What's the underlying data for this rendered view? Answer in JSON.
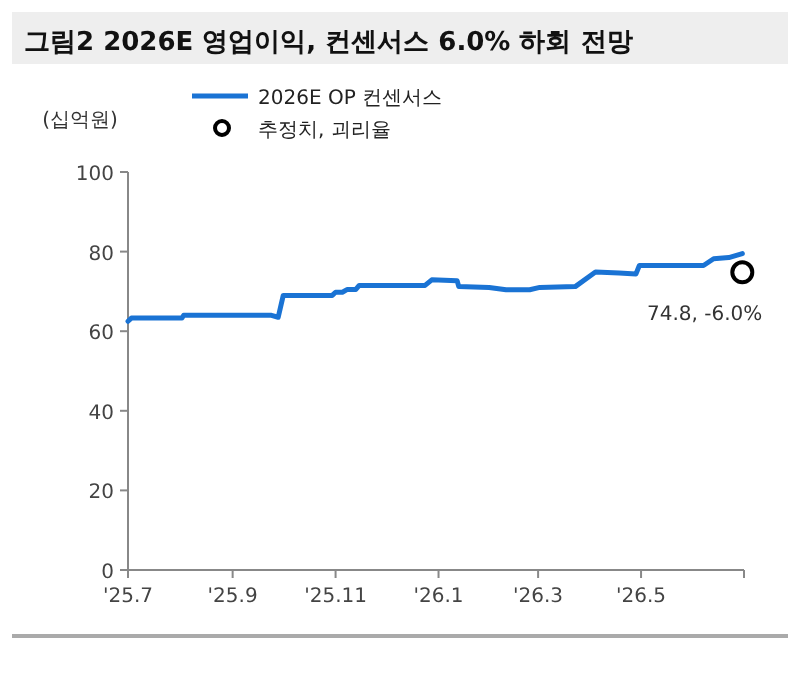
{
  "chart_data": {
    "type": "line",
    "title": "그림2 2026E 영업이익, 컨센서스 6.0% 하회 전망",
    "ylabel": "(십억원)",
    "xlim": [
      "2025-07-01",
      "2026-07-01"
    ],
    "xticks": [
      {
        "value": "2025-07-01",
        "label": "'25.7"
      },
      {
        "value": "2025-09-01",
        "label": "'25.9"
      },
      {
        "value": "2025-11-01",
        "label": "'25.11"
      },
      {
        "value": "2026-01-01",
        "label": "'26.1"
      },
      {
        "value": "2026-03-01",
        "label": "'26.3"
      },
      {
        "value": "2026-05-01",
        "label": "'26.5"
      },
      {
        "value": "2026-07-01",
        "label": null
      }
    ],
    "ylim": [
      0,
      100
    ],
    "yticks": [
      0,
      20,
      40,
      60,
      80,
      100
    ],
    "grid": false,
    "legend": "top left",
    "series": [
      {
        "name": "2026E OP 컨센서스",
        "color": "#1a73d4",
        "line_style": "solid",
        "x": [
          "2025-07-01",
          "2025-07-03",
          "2025-08-02",
          "2025-08-03",
          "2025-09-24",
          "2025-09-28",
          "2025-10-01",
          "2025-10-30",
          "2025-11-01",
          "2025-11-05",
          "2025-11-08",
          "2025-11-13",
          "2025-11-15",
          "2025-12-24",
          "2025-12-28",
          "2026-01-12",
          "2026-01-13",
          "2026-01-31",
          "2026-02-10",
          "2026-02-24",
          "2026-03-02",
          "2026-03-23",
          "2026-04-04",
          "2026-04-18",
          "2026-04-28",
          "2026-04-30",
          "2026-06-07",
          "2026-06-13",
          "2026-06-22",
          "2026-06-30"
        ],
        "values": [
          62.5,
          63.3,
          63.3,
          64.0,
          64.0,
          63.5,
          69.0,
          69.0,
          69.8,
          69.8,
          70.5,
          70.5,
          71.5,
          71.5,
          72.9,
          72.7,
          71.2,
          71.0,
          70.4,
          70.4,
          71.0,
          71.2,
          74.9,
          74.6,
          74.4,
          76.5,
          76.5,
          78.2,
          78.5,
          79.5
        ]
      },
      {
        "name": "추정치, 괴리율",
        "type": "scatter",
        "color": "#000000",
        "marker": "circle",
        "x": [
          "2026-06-30"
        ],
        "values": [
          74.8
        ],
        "value_labels": [
          "74.8, -6.0%"
        ]
      }
    ]
  }
}
